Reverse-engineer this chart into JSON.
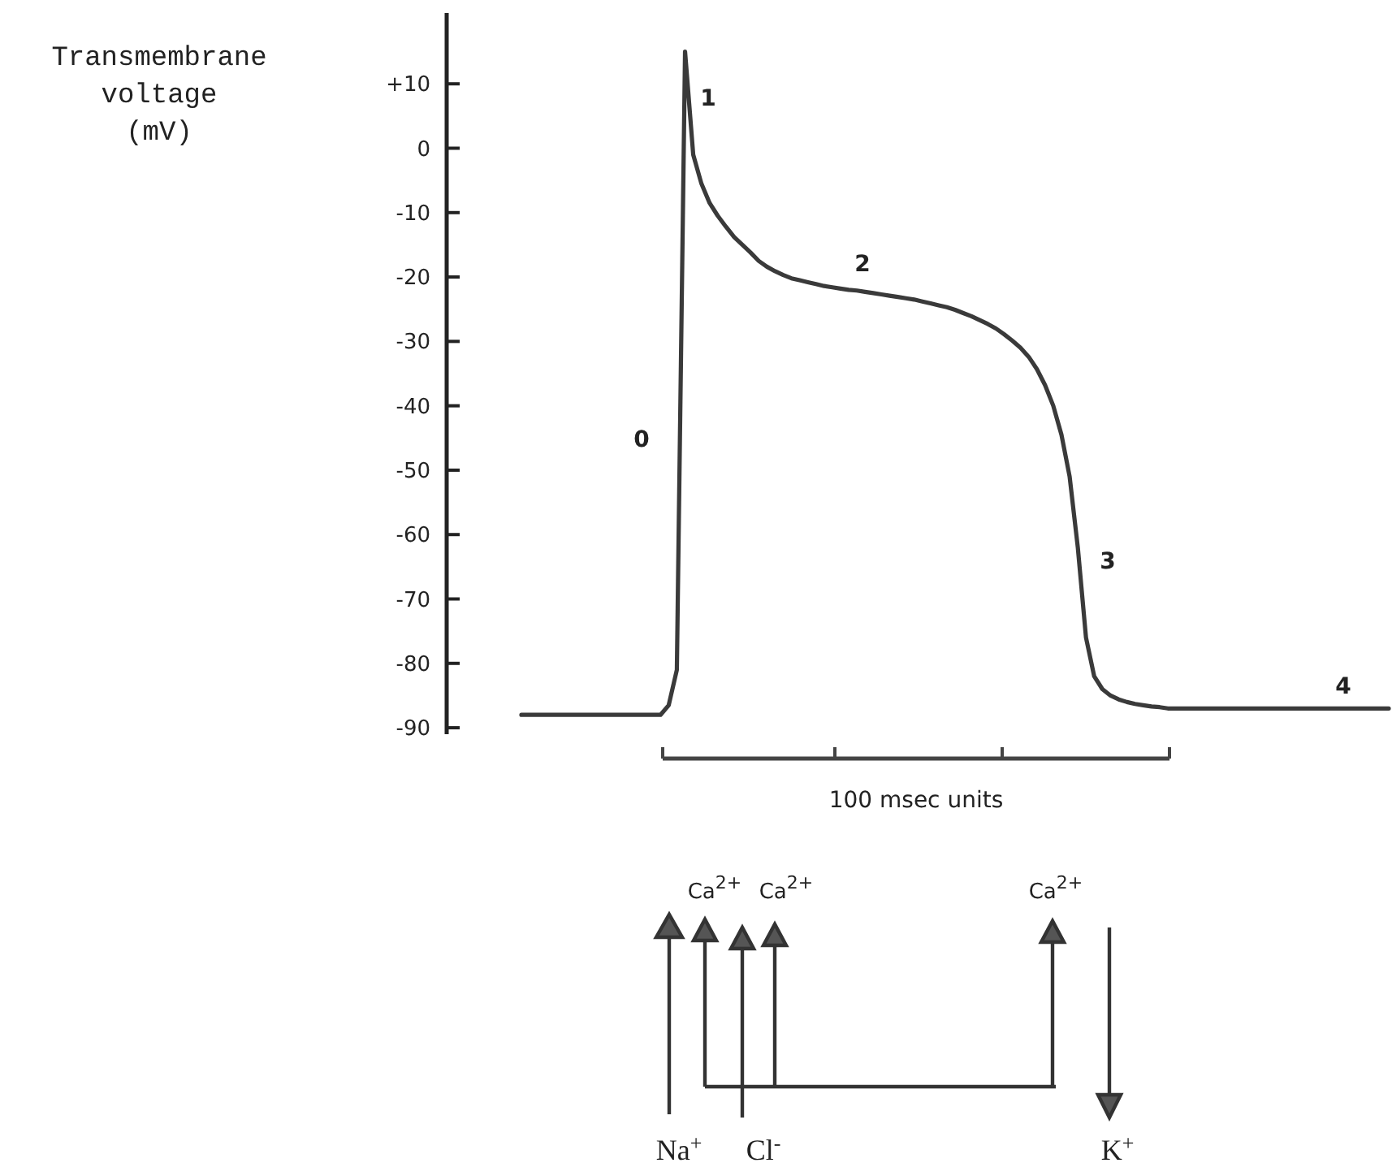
{
  "chart_data": {
    "type": "line",
    "ylabel": "Transmembrane voltage (mV)",
    "xlabel": "100 msec units",
    "categories": [
      null,
      null,
      null,
      null,
      null,
      null,
      null,
      null,
      null,
      null,
      null,
      null,
      null,
      null,
      null,
      null,
      null,
      null,
      null,
      null,
      null,
      null,
      null,
      null,
      null,
      null,
      null,
      null,
      null,
      null,
      null,
      null,
      null,
      null,
      null,
      null,
      null,
      null,
      null,
      null,
      null,
      null,
      null,
      null,
      null,
      null,
      null,
      null,
      null,
      null,
      null,
      null,
      null,
      null,
      null,
      null,
      null,
      null,
      null,
      null,
      null,
      null,
      null,
      null,
      null,
      null,
      null,
      null,
      null,
      null,
      null,
      null,
      null,
      null,
      null,
      null,
      null,
      null,
      null,
      null,
      null,
      null,
      null,
      null,
      null,
      null,
      null,
      null,
      null,
      null,
      null,
      null,
      null,
      null,
      null,
      null,
      null,
      null,
      null,
      null,
      null,
      null,
      null,
      null,
      null,
      null,
      null
    ],
    "series": [
      {
        "color": "#3a3a3a",
        "values": [
          -88,
          -88,
          -88,
          -88,
          -88,
          -88,
          -88,
          -88,
          -88,
          -88,
          -88,
          -88,
          -88,
          -88,
          -88,
          -88,
          -88,
          -88,
          -86.5,
          -81,
          15,
          -1,
          -5.5,
          -8.5,
          -10.5,
          -12.2,
          -13.8,
          -15,
          -16.2,
          -17.5,
          -18.4,
          -19.1,
          -19.7,
          -20.2,
          -20.5,
          -20.8,
          -21.1,
          -21.4,
          -21.6,
          -21.8,
          -22,
          -22.1,
          -22.3,
          -22.5,
          -22.7,
          -22.9,
          -23.1,
          -23.3,
          -23.5,
          -23.8,
          -24.1,
          -24.4,
          -24.7,
          -25.1,
          -25.6,
          -26.1,
          -26.7,
          -27.3,
          -28,
          -28.9,
          -29.9,
          -31,
          -32.4,
          -34.3,
          -36.8,
          -40,
          -44.5,
          -51,
          -62,
          -76,
          -82,
          -84,
          -85,
          -85.6,
          -86,
          -86.3,
          -86.5,
          -86.7,
          -86.8,
          -87,
          -87,
          -87,
          -87,
          -87,
          -87,
          -87,
          -87,
          -87,
          -87,
          -87,
          -87,
          -87,
          -87,
          -87,
          -87,
          -87,
          -87,
          -87,
          -87,
          -87,
          -87,
          -87,
          -87,
          -87,
          -87,
          -87,
          -87
        ]
      }
    ],
    "ylim": [
      -91,
      21
    ],
    "yticks": [
      {
        "value": 10,
        "label": "+10"
      },
      0,
      -10,
      -20,
      -30,
      -40,
      -50,
      -60,
      -70,
      -80,
      -90
    ],
    "grid": false,
    "marker": "none",
    "line_style": "solid",
    "annotations": [
      "0",
      "1",
      "2",
      "3",
      "4",
      "Ca$^{2+}$",
      "Ca$^{2+}$",
      "Ca$^{2+}$",
      "Na$^{+}$",
      "Cl$^{-}$",
      "K$^{+}$"
    ]
  }
}
